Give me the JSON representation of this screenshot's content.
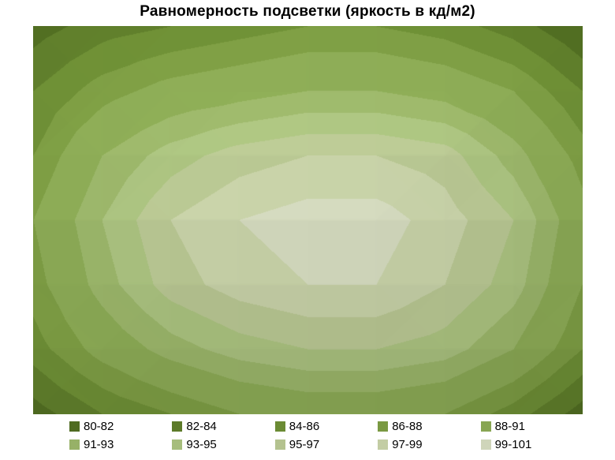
{
  "chart_data": {
    "type": "heatmap",
    "subtype": "contour-surface",
    "title": "Равномерность подсветки (яркость в кд/м2)",
    "unit": "кд/м2",
    "zlim": [
      80,
      101
    ],
    "grid_lines": false,
    "legend_position": "bottom",
    "legend_rows": 2,
    "bands": [
      {
        "label": "80-82",
        "min": 80,
        "max": 82,
        "color": "#4f6b21"
      },
      {
        "label": "82-84",
        "min": 82,
        "max": 84,
        "color": "#5d7b2a"
      },
      {
        "label": "84-86",
        "min": 84,
        "max": 86,
        "color": "#6b8b34"
      },
      {
        "label": "86-88",
        "min": 86,
        "max": 88,
        "color": "#7a9942"
      },
      {
        "label": "88-91",
        "min": 88,
        "max": 91,
        "color": "#88a653"
      },
      {
        "label": "91-93",
        "min": 91,
        "max": 93,
        "color": "#97b167"
      },
      {
        "label": "93-95",
        "min": 93,
        "max": 95,
        "color": "#a6bd7c"
      },
      {
        "label": "95-97",
        "min": 95,
        "max": 97,
        "color": "#b4c28f"
      },
      {
        "label": "97-99",
        "min": 97,
        "max": 99,
        "color": "#c3cda4"
      },
      {
        "label": "99-101",
        "min": 99,
        "max": 101,
        "color": "#cfd5ba"
      }
    ],
    "grid": {
      "rows": 7,
      "cols": 9,
      "values": [
        [
          81,
          83,
          84,
          85,
          86,
          86,
          85,
          83,
          80
        ],
        [
          84,
          87,
          89,
          90,
          91,
          91,
          90,
          88,
          84
        ],
        [
          86,
          91,
          94,
          96,
          97,
          97,
          96,
          92,
          87
        ],
        [
          88,
          93,
          97,
          99,
          100,
          100,
          98,
          95,
          89
        ],
        [
          87,
          92,
          96,
          98,
          99,
          99,
          97,
          94,
          88
        ],
        [
          85,
          89,
          92,
          94,
          95,
          95,
          94,
          91,
          86
        ],
        [
          81,
          84,
          86,
          88,
          89,
          89,
          88,
          85,
          81
        ]
      ]
    }
  }
}
